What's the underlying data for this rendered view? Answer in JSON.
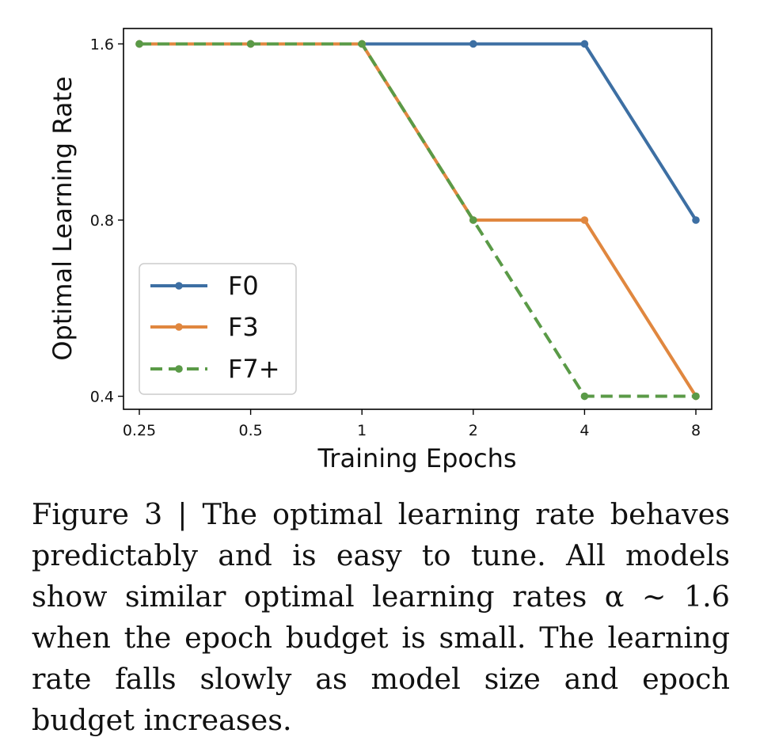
{
  "chart_data": {
    "type": "line",
    "xlabel": "Training Epochs",
    "ylabel": "Optimal Learning Rate",
    "x": [
      0.25,
      0.5,
      1,
      2,
      4,
      8
    ],
    "x_tick_labels": [
      "0.25",
      "0.5",
      "1",
      "2",
      "4",
      "8"
    ],
    "x_scale": "log2",
    "y_scale": "log2",
    "yticks": [
      0.4,
      0.8,
      1.6
    ],
    "y_tick_labels": [
      "0.4",
      "0.8",
      "1.6"
    ],
    "ylim": [
      0.38,
      1.7
    ],
    "grid": false,
    "legend_position": "lower-left",
    "series": [
      {
        "name": "F0",
        "values": [
          1.6,
          1.6,
          1.6,
          1.6,
          1.6,
          0.8
        ],
        "color": "#3d6fa3",
        "dash": "solid"
      },
      {
        "name": "F3",
        "values": [
          1.6,
          1.6,
          1.6,
          0.8,
          0.8,
          0.4
        ],
        "color": "#e0873f",
        "dash": "solid"
      },
      {
        "name": "F7+",
        "values": [
          1.6,
          1.6,
          1.6,
          0.8,
          0.4,
          0.4
        ],
        "color": "#5a9a47",
        "dash": "dashed"
      }
    ]
  },
  "caption": {
    "label": "Figure 3 | The optimal learning rate behaves predictably and is easy to tune.",
    "text": "All models show similar optimal learning rates α ∼ 1.6 when the epoch budget is small. The learning rate falls slowly as model size and epoch budget increases."
  }
}
